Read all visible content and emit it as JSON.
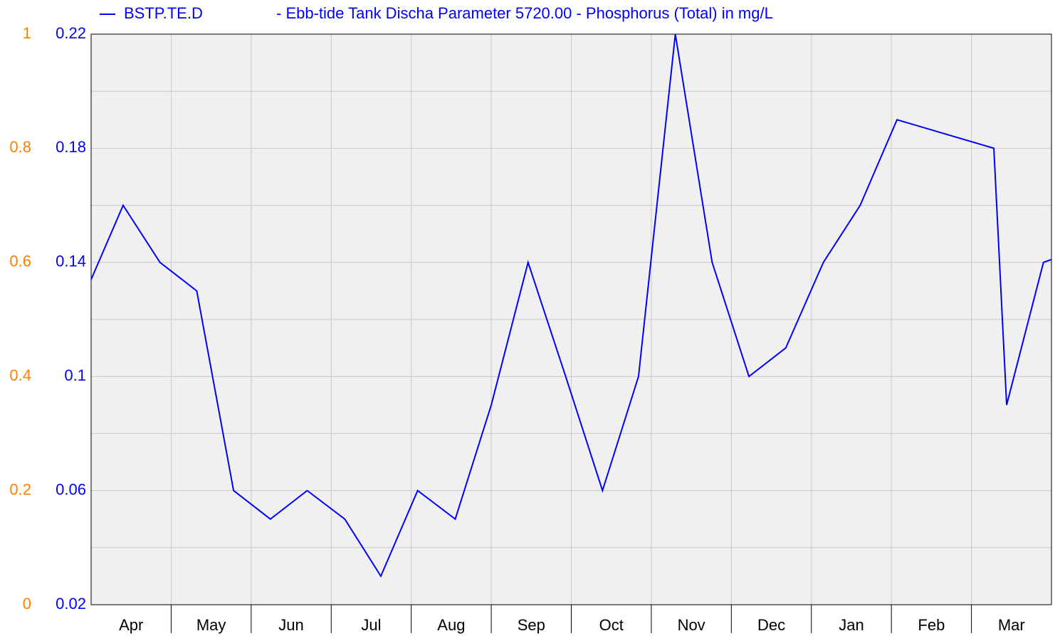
{
  "chart_data": {
    "type": "line",
    "title": "- Ebb-tide Tank Discha Parameter 5720.00 - Phosphorus (Total) in mg/L",
    "categories": [
      "Apr",
      "May",
      "Jun",
      "Jul",
      "Aug",
      "Sep",
      "Oct",
      "Nov",
      "Dec",
      "Jan",
      "Feb",
      "Mar"
    ],
    "xlim": [
      0,
      12
    ],
    "xticks": [
      1,
      2,
      3,
      4,
      5,
      6,
      7,
      8,
      9,
      10,
      11
    ],
    "x": [
      0,
      0.4,
      0.86,
      1.32,
      1.78,
      2.24,
      2.7,
      3.17,
      3.62,
      4.08,
      4.55,
      5,
      5.46,
      5.93,
      6.39,
      6.84,
      7.3,
      7.76,
      8.22,
      8.68,
      9.15,
      9.61,
      10.07,
      11.28,
      11.44,
      11.9,
      12
    ],
    "series": [
      {
        "name": "BSTP.TE.D",
        "color": "#0000ff",
        "values": [
          0.134,
          0.16,
          0.14,
          0.13,
          0.06,
          0.05,
          0.06,
          0.05,
          0.03,
          0.06,
          0.05,
          0.09,
          0.14,
          0.1,
          0.06,
          0.1,
          0.22,
          0.14,
          0.1,
          0.11,
          0.14,
          0.16,
          0.19,
          0.18,
          0.09,
          0.14,
          0.141
        ]
      }
    ],
    "ylim": [
      0.02,
      0.22
    ],
    "yticks": [
      0.02,
      0.06,
      0.1,
      0.14,
      0.18,
      0.22
    ],
    "yticks_minor": [
      0.04,
      0.08,
      0.12,
      0.16,
      0.2
    ],
    "ytick_color": "#0000ff",
    "y2lim": [
      0,
      1
    ],
    "y2ticks": [
      0,
      0.2,
      0.4,
      0.6,
      0.8,
      1
    ],
    "y2tick_color": "#ff7f00",
    "grid": true
  }
}
